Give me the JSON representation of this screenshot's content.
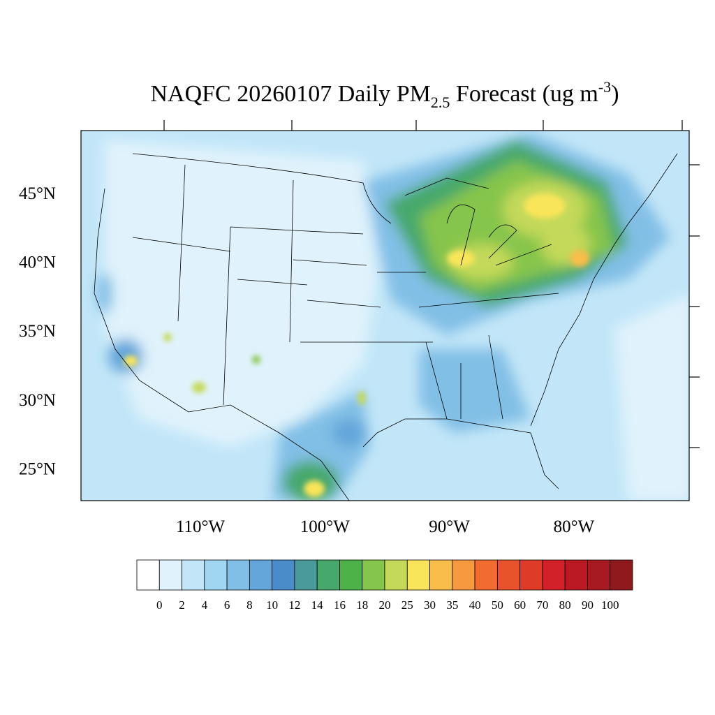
{
  "header": {
    "title_main": "NAQFC 20260107 Daily PM",
    "title_sub": "2.5",
    "title_mid": " Forecast (ug m",
    "title_sup": "-3",
    "title_end": ")"
  },
  "lat_ticks": [
    {
      "value": 45,
      "label": "45°N"
    },
    {
      "value": 40,
      "label": "40°N"
    },
    {
      "value": 35,
      "label": "35°N"
    },
    {
      "value": 30,
      "label": "30°N"
    },
    {
      "value": 25,
      "label": "25°N"
    }
  ],
  "lon_ticks": [
    {
      "value": 110,
      "label": "110°W"
    },
    {
      "value": 100,
      "label": "100°W"
    },
    {
      "value": 90,
      "label": "90°W"
    },
    {
      "value": 80,
      "label": "80°W"
    }
  ],
  "colorbar": {
    "colors": [
      "#ffffff",
      "#e0f3fc",
      "#c2e6f8",
      "#a1d6f3",
      "#82bfe6",
      "#64a6da",
      "#4a8cca",
      "#4a9a9a",
      "#47a86c",
      "#4db348",
      "#86c54c",
      "#c4d95a",
      "#f9e55a",
      "#f9bd4a",
      "#f7993f",
      "#f26c2f",
      "#e9532b",
      "#de3b28",
      "#d32129",
      "#bb1a25",
      "#a71a22",
      "#8e1a1e"
    ],
    "labels": [
      0,
      2,
      4,
      6,
      8,
      10,
      12,
      14,
      16,
      18,
      20,
      25,
      30,
      35,
      40,
      50,
      60,
      70,
      80,
      90,
      100
    ]
  }
}
